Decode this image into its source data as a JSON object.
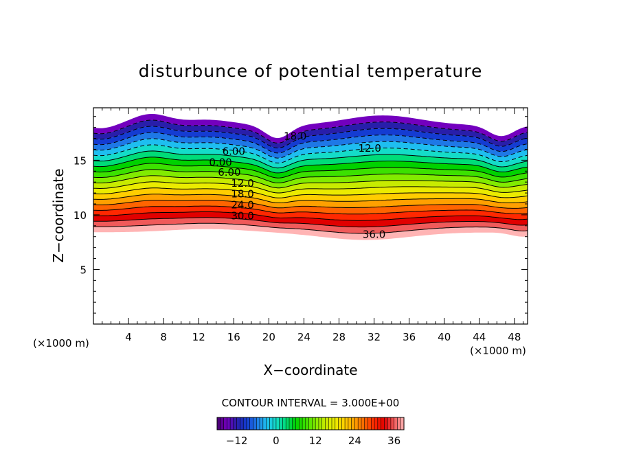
{
  "chart_data": {
    "type": "contour",
    "title": "disturbunce of potential temperature",
    "xlabel": "X−coordinate",
    "ylabel": "Z−coordinate",
    "x_unit": "(×1000 m)",
    "y_unit": "(×1000 m)",
    "xlim": [
      0,
      49.5
    ],
    "ylim": [
      0,
      19.8
    ],
    "x_ticks": [
      4,
      8,
      12,
      16,
      20,
      24,
      28,
      32,
      36,
      40,
      44,
      48
    ],
    "y_ticks": [
      5,
      10,
      15
    ],
    "contour_interval_text": "CONTOUR INTERVAL = 3.000E+00",
    "levels": [
      -18,
      -15,
      -12,
      -9,
      -6,
      -3,
      0,
      3,
      6,
      9,
      12,
      15,
      18,
      21,
      24,
      27,
      30,
      33,
      36,
      39
    ],
    "contour_labels": [
      {
        "text": "18.0",
        "x": 23,
        "y": 17.2
      },
      {
        "text": "12.0",
        "x": 31.5,
        "y": 16.1
      },
      {
        "text": "6.00",
        "x": 16,
        "y": 15.8
      },
      {
        "text": "0.00",
        "x": 14.5,
        "y": 14.8
      },
      {
        "text": "6.00",
        "x": 15.5,
        "y": 13.9
      },
      {
        "text": "12.0",
        "x": 17,
        "y": 12.9
      },
      {
        "text": "18.0",
        "x": 17,
        "y": 11.9
      },
      {
        "text": "24.0",
        "x": 17,
        "y": 10.9
      },
      {
        "text": "30.0",
        "x": 17,
        "y": 9.9
      },
      {
        "text": "36.0",
        "x": 32,
        "y": 8.2
      }
    ],
    "colorbar": {
      "min": -18,
      "max": 39,
      "tick_labels": [
        "−12",
        "0",
        "12",
        "24",
        "36"
      ],
      "tick_values": [
        -12,
        0,
        12,
        24,
        36
      ]
    },
    "grid": false,
    "legend": "bottom-center colorbar"
  }
}
